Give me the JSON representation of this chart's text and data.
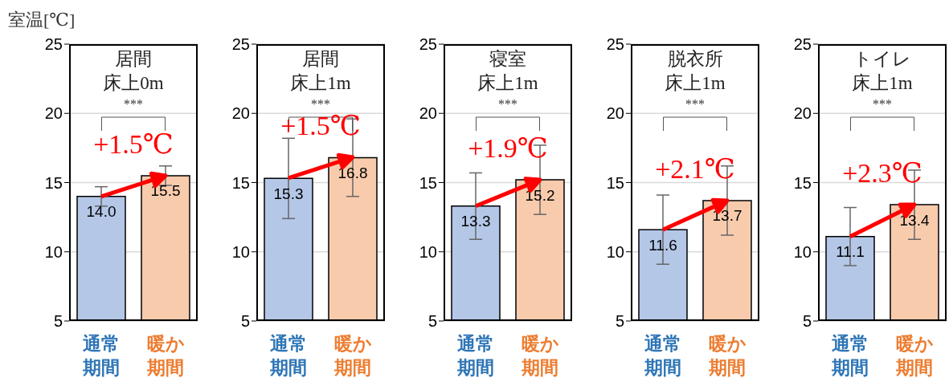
{
  "chart_data": [
    {
      "type": "bar",
      "title": "居間",
      "subtitle": "床上0m",
      "ylabel": "室温[℃]",
      "categories": [
        "通常期間",
        "暖か期間"
      ],
      "values": [
        14.0,
        15.5
      ],
      "value_labels": [
        "14.0",
        "15.5"
      ],
      "errors": [
        0.7,
        0.7
      ],
      "colors": [
        "#b4c7e7",
        "#f8cbad"
      ],
      "ylim": [
        5,
        25
      ],
      "yticks": [
        5,
        10,
        15,
        20,
        25
      ],
      "grid": "y",
      "annotations": [
        "***",
        "+1.5℃"
      ]
    },
    {
      "type": "bar",
      "title": "居間",
      "subtitle": "床上1m",
      "categories": [
        "通常期間",
        "暖か期間"
      ],
      "values": [
        15.3,
        16.8
      ],
      "value_labels": [
        "15.3",
        "16.8"
      ],
      "errors": [
        2.9,
        2.8
      ],
      "colors": [
        "#b4c7e7",
        "#f8cbad"
      ],
      "ylim": [
        5,
        25
      ],
      "yticks": [
        5,
        10,
        15,
        20,
        25
      ],
      "grid": "y",
      "annotations": [
        "***",
        "+1.5℃"
      ]
    },
    {
      "type": "bar",
      "title": "寝室",
      "subtitle": "床上1m",
      "categories": [
        "通常期間",
        "暖か期間"
      ],
      "values": [
        13.3,
        15.2
      ],
      "value_labels": [
        "13.3",
        "15.2"
      ],
      "errors": [
        2.4,
        2.5
      ],
      "colors": [
        "#b4c7e7",
        "#f8cbad"
      ],
      "ylim": [
        5,
        25
      ],
      "yticks": [
        5,
        10,
        15,
        20,
        25
      ],
      "grid": "y",
      "annotations": [
        "***",
        "+1.9℃"
      ]
    },
    {
      "type": "bar",
      "title": "脱衣所",
      "subtitle": "床上1m",
      "categories": [
        "通常期間",
        "暖か期間"
      ],
      "values": [
        11.6,
        13.7
      ],
      "value_labels": [
        "11.6",
        "13.7"
      ],
      "errors": [
        2.5,
        2.5
      ],
      "colors": [
        "#b4c7e7",
        "#f8cbad"
      ],
      "ylim": [
        5,
        25
      ],
      "yticks": [
        5,
        10,
        15,
        20,
        25
      ],
      "grid": "y",
      "annotations": [
        "***",
        "+2.1℃"
      ]
    },
    {
      "type": "bar",
      "title": "トイレ",
      "subtitle": "床上1m",
      "categories": [
        "通常期間",
        "暖か期間"
      ],
      "values": [
        11.1,
        13.4
      ],
      "value_labels": [
        "11.1",
        "13.4"
      ],
      "errors": [
        2.1,
        2.5
      ],
      "colors": [
        "#b4c7e7",
        "#f8cbad"
      ],
      "ylim": [
        5,
        25
      ],
      "yticks": [
        5,
        10,
        15,
        20,
        25
      ],
      "grid": "y",
      "annotations": [
        "***",
        "+2.3℃"
      ]
    }
  ]
}
